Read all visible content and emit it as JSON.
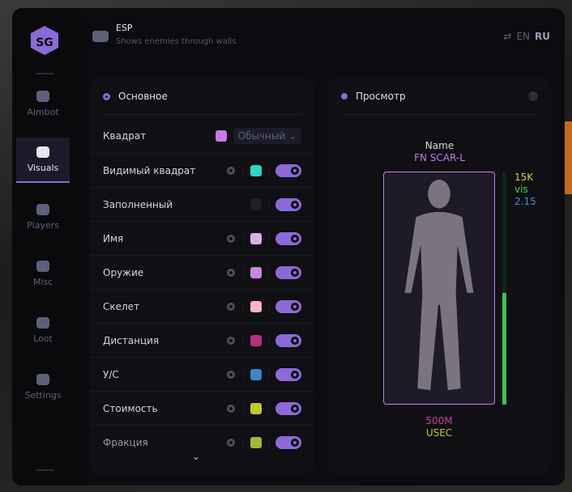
{
  "header": {
    "title": "ESP",
    "subtitle": "Shows enemies through walls",
    "lang": [
      "EN",
      "RU"
    ],
    "active_lang": "RU"
  },
  "sidebar": {
    "items": [
      {
        "label": "Aimbot"
      },
      {
        "label": "Visuals",
        "active": true
      },
      {
        "label": "Players"
      },
      {
        "label": "Misc"
      },
      {
        "label": "Loot"
      },
      {
        "label": "Settings"
      }
    ]
  },
  "main": {
    "title": "Основное",
    "rows": [
      {
        "label": "Квадрат",
        "color": "#c77ae8",
        "select": "Обычный"
      },
      {
        "label": "Видимый квадрат",
        "color": "#2fd3c4",
        "gear": true,
        "on": true
      },
      {
        "label": "Заполненный",
        "color": "#231f2c",
        "gear": false,
        "on": true
      },
      {
        "label": "Имя",
        "color": "#d6b2e2",
        "gear": true,
        "on": true
      },
      {
        "label": "Оружие",
        "color": "#cc86e0",
        "gear": true,
        "on": true
      },
      {
        "label": "Скелет",
        "color": "#ffb4c4",
        "gear": true,
        "on": true
      },
      {
        "label": "Дистанция",
        "color": "#b4307e",
        "gear": true,
        "on": true
      },
      {
        "label": "У/С",
        "color": "#3c86c6",
        "gear": true,
        "on": true
      },
      {
        "label": "Стоимость",
        "color": "#c0c82c",
        "gear": true,
        "on": true
      },
      {
        "label": "Фракция",
        "color": "#a0b830",
        "gear": true,
        "on": true
      }
    ]
  },
  "preview": {
    "title": "Просмотр",
    "help": "?",
    "name_label": "Name",
    "weapon": "FN SCAR-L",
    "value": "15K",
    "vis": "vis",
    "kd": "2.15",
    "distance": "500M",
    "faction": "USEC",
    "health_percent": 48
  }
}
